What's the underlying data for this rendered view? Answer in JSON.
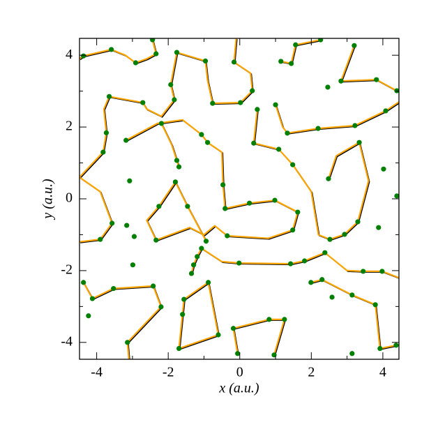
{
  "chart_data": {
    "type": "scatter",
    "x_label": "x (a.u.)",
    "y_label": "y (a.u.)",
    "xlim": [
      -4.48,
      4.45
    ],
    "ylim": [
      -4.47,
      4.47
    ],
    "xticks": [
      -4,
      -2,
      0,
      2,
      4
    ],
    "yticks": [
      -4,
      -2,
      0,
      2,
      4
    ],
    "xminor": [
      -3,
      -1,
      1,
      3
    ],
    "yminor": [
      -3,
      -1,
      1,
      3
    ],
    "curves": {
      "color": "#ffa500",
      "x": [
        -4.48,
        -4.37,
        -3.59,
        -3.2,
        -2.91,
        -2.6,
        -2.34,
        -2.44,
        -2.4,
        null,
        -1.76,
        -0.96,
        -0.9,
        -0.76,
        0.02,
        0.35,
        0.3,
        -0.16,
        -0.1,
        null,
        -1.76,
        -1.93,
        -1.83,
        -2.19,
        -2.6,
        -2.71,
        -3.65,
        -3.8,
        -3.73,
        -3.82,
        -4.2,
        -4.48,
        null,
        -2.19,
        -1.9,
        -1.76,
        -1.7,
        null,
        -3.18,
        -2.3,
        -1.6,
        -1.07,
        -0.9,
        -0.5,
        -0.47,
        -0.41,
        0.27,
        0.98,
        1.62,
        1.48,
        0.8,
        -0.35,
        -0.7,
        -1.0,
        -1.4,
        -2.34,
        -2.6,
        -2.26,
        -1.8,
        -1.46,
        -0.94,
        null,
        -4.48,
        -3.9,
        -3.57,
        -3.9,
        -4.48,
        null,
        -1.35,
        -1.29,
        -1.19,
        -1.07,
        -0.5,
        -0.02,
        1.42,
        1.81,
        2.38,
        3.0,
        3.45,
        3.98,
        4.45,
        null,
        1.0,
        1.2,
        1.33,
        2.19,
        3.22,
        4.08,
        4.45,
        null,
        0.49,
        0.39,
        1.09,
        1.48,
        2.0,
        2.2,
        2.52,
        2.93,
        3.3,
        3.6,
        3.34,
        2.7,
        2.48,
        null,
        -4.37,
        -4.12,
        -3.53,
        -2.42,
        -2.2,
        -3.14,
        -3.1,
        null,
        -1.7,
        -1.56,
        -0.88,
        -0.6,
        -1.7,
        null,
        -0.06,
        -0.18,
        0.82,
        1.25,
        0.96,
        null,
        1.99,
        2.3,
        3.14,
        3.79,
        3.92,
        4.37,
        null,
        3.2,
        2.83,
        3.82,
        4.39,
        null,
        1.15,
        1.44,
        1.56,
        2.26
      ],
      "y": [
        3.9,
        3.98,
        4.16,
        4.0,
        3.79,
        3.9,
        4.04,
        4.43,
        4.47,
        null,
        4.08,
        3.84,
        3.3,
        2.66,
        2.68,
        3.01,
        3.5,
        3.81,
        4.47,
        null,
        4.08,
        3.18,
        2.76,
        2.3,
        2.5,
        2.68,
        2.85,
        2.5,
        1.84,
        1.3,
        0.9,
        0.6,
        null,
        2.1,
        1.5,
        1.07,
        0.89,
        null,
        1.63,
        2.1,
        2.2,
        1.79,
        1.57,
        1.3,
        0.39,
        -0.27,
        -0.12,
        -0.04,
        -0.37,
        -0.87,
        -1.1,
        -1.03,
        -0.75,
        -1.0,
        -0.8,
        -1.15,
        -0.6,
        -0.21,
        0.47,
        -0.21,
        -1.18,
        null,
        -1.2,
        -1.13,
        -0.68,
        0.2,
        0.6,
        null,
        -2.08,
        -1.84,
        -1.61,
        -1.38,
        -1.75,
        -1.79,
        -1.81,
        -1.73,
        -1.5,
        -2.0,
        -2.02,
        -2.02,
        -2.2,
        null,
        2.62,
        2.0,
        1.83,
        1.96,
        2.04,
        2.45,
        2.7,
        null,
        2.49,
        1.55,
        1.38,
        0.95,
        0.2,
        -1.0,
        -1.13,
        -0.99,
        -0.64,
        0.5,
        1.57,
        1.2,
        0.56,
        null,
        -2.33,
        -2.78,
        -2.5,
        -2.43,
        -3.01,
        -4.0,
        -4.47,
        null,
        -4.17,
        -2.8,
        -2.33,
        -3.79,
        -4.17,
        null,
        -4.31,
        -3.61,
        -3.36,
        -3.36,
        -4.35,
        null,
        -2.33,
        -2.25,
        -2.68,
        -2.95,
        -4.17,
        -4.08,
        null,
        4.27,
        3.28,
        3.32,
        3.01,
        null,
        3.83,
        3.77,
        4.29,
        4.43
      ]
    },
    "points": {
      "color": "#008000",
      "x": [
        -4.37,
        -3.59,
        -2.91,
        -2.44,
        -2.34,
        -1.76,
        -0.96,
        -0.16,
        -1.93,
        -1.83,
        -3.65,
        -2.71,
        -2.19,
        -3.73,
        -3.82,
        -3.18,
        -1.07,
        -0.9,
        -1.76,
        -1.7,
        -3.08,
        -1.8,
        -2.26,
        -1.46,
        -0.47,
        -0.41,
        0.27,
        -3.57,
        -3.9,
        -3.16,
        -2.95,
        -2.34,
        -2.99,
        -0.94,
        -1.07,
        -1.19,
        -1.29,
        -1.35,
        -0.02,
        1.42,
        1.81,
        2.38,
        -0.35,
        1.48,
        1.62,
        0.98,
        2.48,
        3.34,
        4.02,
        4.39,
        3.88,
        3.3,
        2.93,
        2.52,
        3.22,
        4.08,
        3.82,
        3.2,
        2.83,
        2.46,
        2.19,
        1.33,
        0.49,
        0.35,
        0.39,
        1.09,
        1.48,
        0.02,
        -0.76,
        1.15,
        1.44,
        1.0,
        1.56,
        2.26,
        3.98,
        3.45,
        1.99,
        2.3,
        3.14,
        3.79,
        -4.37,
        -4.12,
        -3.53,
        -4.23,
        -3.14,
        -2.42,
        -2.2,
        -1.56,
        -1.6,
        -1.7,
        -0.88,
        -0.6,
        -0.18,
        0.82,
        1.25,
        0.96,
        -0.06,
        3.14,
        3.92,
        4.37,
        4.39,
        2.58
      ],
      "y": [
        3.98,
        4.16,
        3.79,
        4.43,
        4.04,
        4.08,
        3.84,
        3.81,
        3.18,
        2.76,
        2.85,
        2.68,
        2.1,
        1.84,
        1.3,
        1.63,
        1.79,
        1.57,
        1.07,
        0.89,
        0.5,
        0.47,
        -0.21,
        -0.21,
        0.39,
        -0.27,
        -0.12,
        -0.68,
        -1.13,
        -0.74,
        -1.05,
        -1.15,
        -1.84,
        -1.18,
        -1.38,
        -1.61,
        -1.84,
        -2.08,
        -1.79,
        -1.81,
        -1.73,
        -1.5,
        -1.03,
        -0.87,
        -0.37,
        -0.04,
        0.56,
        1.57,
        0.83,
        0.08,
        -0.8,
        -0.64,
        -0.99,
        -1.13,
        2.04,
        2.45,
        3.32,
        4.27,
        3.28,
        3.11,
        1.96,
        1.83,
        2.49,
        3.01,
        1.55,
        1.38,
        0.95,
        2.68,
        2.66,
        3.83,
        3.77,
        2.62,
        4.29,
        4.43,
        -2.02,
        -2.02,
        -2.33,
        -2.25,
        -2.68,
        -2.95,
        -2.33,
        -2.78,
        -2.5,
        -3.26,
        -4.0,
        -2.43,
        -3.01,
        -2.8,
        -3.22,
        -4.17,
        -2.33,
        -3.79,
        -3.61,
        -3.36,
        -3.36,
        -4.35,
        -4.31,
        -4.31,
        -4.17,
        -4.08,
        3.01,
        -2.74
      ]
    }
  }
}
